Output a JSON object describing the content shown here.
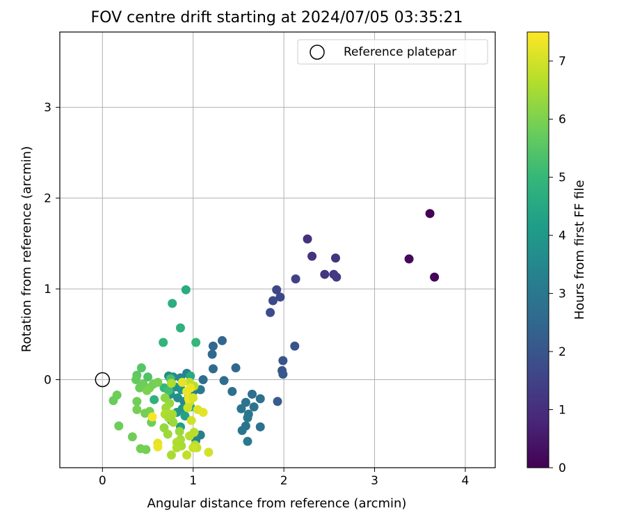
{
  "chart_data": {
    "type": "scatter",
    "title": "FOV centre drift starting at 2024/07/05 03:35:21",
    "xlabel": "Angular distance from reference (arcmin)",
    "ylabel": "Rotation from reference (arcmin)",
    "xlim": [
      -0.47,
      4.33
    ],
    "ylim": [
      -0.97,
      3.83
    ],
    "x_ticks": [
      0,
      1,
      2,
      3,
      4
    ],
    "y_ticks": [
      0,
      1,
      2,
      3
    ],
    "grid": true,
    "legend": {
      "position": "top-right",
      "entries": [
        "Reference platepar"
      ]
    },
    "reference_point": {
      "x": 0,
      "y": 0,
      "label": "Reference platepar"
    },
    "colorbar": {
      "label": "Hours from first FF file",
      "min": 0,
      "max": 7.5,
      "ticks": [
        0,
        1,
        2,
        3,
        4,
        5,
        6,
        7
      ],
      "colormap": "viridis"
    },
    "colormap_stops": [
      "#440154",
      "#482878",
      "#3e4989",
      "#31688e",
      "#26828e",
      "#1f9e89",
      "#35b779",
      "#6ece58",
      "#b5de2b",
      "#fde725"
    ],
    "series": [
      {
        "points": [
          [
            3.61,
            1.83,
            0.0
          ],
          [
            3.38,
            1.33,
            0.15
          ],
          [
            3.66,
            1.13,
            0.1
          ],
          [
            2.26,
            1.55,
            1.05
          ],
          [
            2.31,
            1.36,
            1.1
          ],
          [
            2.57,
            1.34,
            1.15
          ],
          [
            2.45,
            1.16,
            1.2
          ],
          [
            2.55,
            1.16,
            1.25
          ],
          [
            2.58,
            1.13,
            1.3
          ],
          [
            2.13,
            1.11,
            1.5
          ],
          [
            1.92,
            0.99,
            1.6
          ],
          [
            1.96,
            0.91,
            1.65
          ],
          [
            1.88,
            0.87,
            1.7
          ],
          [
            1.85,
            0.74,
            1.75
          ],
          [
            2.12,
            0.37,
            1.9
          ],
          [
            1.99,
            0.21,
            2.0
          ],
          [
            1.98,
            0.1,
            2.05
          ],
          [
            1.99,
            0.06,
            2.1
          ],
          [
            1.93,
            -0.24,
            2.2
          ],
          [
            1.32,
            0.43,
            2.45
          ],
          [
            1.22,
            0.37,
            2.5
          ],
          [
            1.21,
            0.28,
            2.55
          ],
          [
            1.22,
            0.12,
            2.6
          ],
          [
            1.11,
            0.0,
            2.7
          ],
          [
            1.47,
            0.13,
            2.5
          ],
          [
            1.34,
            -0.01,
            2.65
          ],
          [
            1.43,
            -0.13,
            2.7
          ],
          [
            1.65,
            -0.16,
            2.75
          ],
          [
            1.74,
            -0.21,
            2.8
          ],
          [
            1.58,
            -0.25,
            2.85
          ],
          [
            1.67,
            -0.3,
            2.9
          ],
          [
            1.53,
            -0.32,
            2.9
          ],
          [
            1.61,
            -0.38,
            2.95
          ],
          [
            1.6,
            -0.42,
            3.0
          ],
          [
            1.74,
            -0.52,
            2.8
          ],
          [
            1.58,
            -0.51,
            2.85
          ],
          [
            1.54,
            -0.56,
            2.9
          ],
          [
            1.6,
            -0.68,
            3.0
          ],
          [
            1.08,
            -0.11,
            3.1
          ],
          [
            1.0,
            -0.13,
            3.2
          ],
          [
            0.93,
            0.07,
            3.3
          ],
          [
            1.08,
            -0.61,
            3.2
          ],
          [
            1.03,
            -0.67,
            3.4
          ],
          [
            0.86,
            0.02,
            3.5
          ],
          [
            0.78,
            0.03,
            3.6
          ],
          [
            0.73,
            0.04,
            3.7
          ],
          [
            0.8,
            -0.08,
            3.8
          ],
          [
            0.87,
            -0.11,
            3.9
          ],
          [
            0.75,
            -0.16,
            3.8
          ],
          [
            0.83,
            -0.2,
            3.7
          ],
          [
            0.9,
            -0.24,
            3.6
          ],
          [
            0.95,
            -0.16,
            3.7
          ],
          [
            0.88,
            -0.32,
            3.9
          ],
          [
            0.82,
            -0.36,
            4.0
          ],
          [
            0.76,
            -0.45,
            4.1
          ],
          [
            0.86,
            -0.52,
            4.2
          ],
          [
            0.91,
            -0.4,
            4.3
          ],
          [
            0.97,
            -0.3,
            4.4
          ],
          [
            0.97,
            0.04,
            4.5
          ],
          [
            0.92,
            0.99,
            4.6
          ],
          [
            0.77,
            0.84,
            4.7
          ],
          [
            0.86,
            0.57,
            4.8
          ],
          [
            0.67,
            0.41,
            4.9
          ],
          [
            1.03,
            0.41,
            5.0
          ],
          [
            0.57,
            -0.22,
            4.8
          ],
          [
            0.68,
            -0.09,
            5.0
          ],
          [
            0.73,
            -0.12,
            5.2
          ],
          [
            0.75,
            0.01,
            5.3
          ],
          [
            0.5,
            0.03,
            5.4
          ],
          [
            0.43,
            0.13,
            5.5
          ],
          [
            0.38,
            0.05,
            5.6
          ],
          [
            0.37,
            0.0,
            5.7
          ],
          [
            0.45,
            -0.05,
            5.8
          ],
          [
            0.41,
            -0.09,
            5.8
          ],
          [
            0.52,
            -0.09,
            5.9
          ],
          [
            0.49,
            -0.12,
            6.0
          ],
          [
            0.56,
            -0.05,
            5.9
          ],
          [
            0.61,
            -0.03,
            5.95
          ],
          [
            0.12,
            -0.23,
            5.75
          ],
          [
            0.16,
            -0.17,
            5.8
          ],
          [
            0.38,
            -0.24,
            5.85
          ],
          [
            0.38,
            -0.33,
            5.9
          ],
          [
            0.47,
            -0.37,
            5.9
          ],
          [
            0.52,
            -0.35,
            5.9
          ],
          [
            0.54,
            -0.47,
            5.85
          ],
          [
            0.18,
            -0.51,
            5.8
          ],
          [
            0.33,
            -0.63,
            5.85
          ],
          [
            0.42,
            -0.76,
            5.9
          ],
          [
            0.48,
            -0.77,
            5.9
          ],
          [
            0.69,
            -0.2,
            6.2
          ],
          [
            0.74,
            -0.26,
            6.3
          ],
          [
            0.7,
            -0.31,
            6.4
          ],
          [
            0.77,
            -0.38,
            6.5
          ],
          [
            0.69,
            -0.38,
            6.6
          ],
          [
            0.73,
            -0.42,
            6.5
          ],
          [
            0.78,
            -0.47,
            6.4
          ],
          [
            0.68,
            -0.53,
            6.3
          ],
          [
            0.72,
            -0.6,
            6.4
          ],
          [
            0.85,
            -0.57,
            6.35
          ],
          [
            0.86,
            -0.66,
            6.5
          ],
          [
            0.82,
            -0.69,
            6.6
          ],
          [
            0.87,
            -0.73,
            6.5
          ],
          [
            0.82,
            -0.75,
            6.6
          ],
          [
            0.76,
            -0.83,
            6.5
          ],
          [
            0.96,
            -0.62,
            6.7
          ],
          [
            1.01,
            -0.58,
            6.7
          ],
          [
            1.02,
            -0.72,
            6.6
          ],
          [
            1.04,
            -0.75,
            6.8
          ],
          [
            1.0,
            -0.75,
            6.9
          ],
          [
            0.93,
            -0.83,
            6.8
          ],
          [
            1.01,
            -0.07,
            6.7
          ],
          [
            0.96,
            -0.03,
            6.8
          ],
          [
            0.96,
            -0.25,
            6.9
          ],
          [
            0.94,
            -0.31,
            6.9
          ],
          [
            0.98,
            -0.45,
            7.0
          ],
          [
            1.05,
            -0.33,
            7.1
          ],
          [
            1.11,
            -0.36,
            7.2
          ],
          [
            0.88,
            -0.03,
            7.2
          ],
          [
            0.93,
            -0.13,
            7.3
          ],
          [
            0.97,
            -0.09,
            7.3
          ],
          [
            0.95,
            -0.21,
            7.3
          ],
          [
            0.55,
            -0.41,
            7.4
          ],
          [
            0.61,
            -0.7,
            7.2
          ],
          [
            0.61,
            -0.74,
            7.3
          ],
          [
            1.17,
            -0.8,
            7.0
          ],
          [
            0.76,
            -0.04,
            6.6
          ],
          [
            1.0,
            -0.2,
            7.1
          ]
        ]
      }
    ]
  }
}
